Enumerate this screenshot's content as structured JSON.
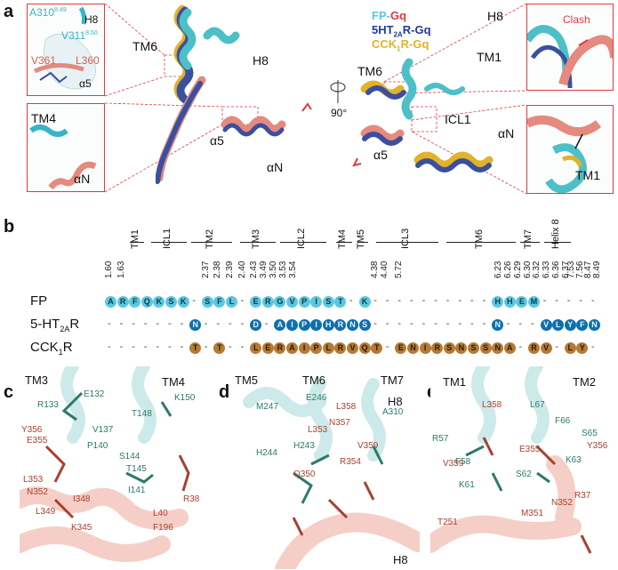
{
  "panel_a": {
    "letter": "a",
    "legend": [
      {
        "label": "FP-Gq",
        "parts": [
          {
            "t": "FP-",
            "c": "#5ac8e3"
          },
          {
            "t": "Gq",
            "c": "#e0393e"
          }
        ]
      },
      {
        "label": "5HT2AR-Gq",
        "parts": [
          {
            "t": "5HT",
            "c": "#1f3aa0"
          },
          {
            "t": "2A",
            "c": "#1f3aa0",
            "sub": true
          },
          {
            "t": "R-Gq",
            "c": "#1f3aa0"
          }
        ]
      },
      {
        "label": "CCK1R-Gq",
        "parts": [
          {
            "t": "CCK",
            "c": "#e2b22a"
          },
          {
            "t": "1",
            "c": "#e2b22a",
            "sub": true
          },
          {
            "t": "R-Gq",
            "c": "#e2b22a"
          }
        ]
      }
    ],
    "inset_top_left": {
      "a310": "A310",
      "a310_sup": "8.49",
      "h8": "H8",
      "v311": "V311",
      "v311_sup": "8.50",
      "v361": "V361",
      "l360": "L360",
      "alpha5": "α5"
    },
    "inset_bottom_left": {
      "tm4": "TM4",
      "alphaN": "αN"
    },
    "left_structure": {
      "tm6": "TM6",
      "h8": "H8",
      "alpha5": "α5",
      "alphaN": "αN"
    },
    "rotation": "90°",
    "right_structure": {
      "h8": "H8",
      "tm6": "TM6",
      "tm1": "TM1",
      "icl1": "ICL1",
      "alpha5": "α5",
      "alphaN": "αN"
    },
    "inset_top_right": {
      "clash": "Clash"
    },
    "inset_bottom_right": {
      "tm1": "TM1"
    }
  },
  "panel_b": {
    "letter": "b",
    "segments": [
      "TM1",
      "ICL1",
      "TM2",
      "TM3",
      "ICL2",
      "TM4",
      "TM5",
      "ICL3",
      "TM6",
      "TM7",
      "Helix 8"
    ],
    "bw_positions": [
      "1.60",
      "1.63",
      "2.37",
      "2.38",
      "2.39",
      "2.40",
      "2.43",
      "3.49",
      "3.50",
      "3.53",
      "3.54",
      "4.38",
      "4.40",
      "5.72",
      "6.23",
      "6.26",
      "6.29",
      "6.30",
      "6.32",
      "6.33",
      "6.36",
      "6.37",
      "7.53",
      "7.56",
      "8.47",
      "8.49"
    ],
    "rows": [
      {
        "label": "FP",
        "sub": "",
        "suffix": "",
        "residues": "A R F Q K S K - S F L - E R G V P I S T - K - - - - - - - - - - H H E M - - - - - - A"
      },
      {
        "label": "5-HT",
        "sub": "2A",
        "suffix": "R",
        "residues": "- - - - - - - N - - - - D - A I P I H R N S - - - - - - - - - - N - - - V L Y F N -"
      },
      {
        "label": "CCK",
        "sub": "1",
        "suffix": "R",
        "residues": "- - - - - - - T - T - - L E R A I P L R V Q T - E N I R S N S S N A - R V - L Y - N R"
      }
    ]
  },
  "panel_c": {
    "letter": "c",
    "helices": [
      "TM3",
      "TM4"
    ],
    "residues": [
      {
        "t": "E132",
        "k": "g"
      },
      {
        "t": "R133",
        "k": "g"
      },
      {
        "t": "T148",
        "k": "g"
      },
      {
        "t": "K150",
        "k": "g"
      },
      {
        "t": "Y356",
        "k": "r"
      },
      {
        "t": "V137",
        "k": "g"
      },
      {
        "t": "E355",
        "k": "r"
      },
      {
        "t": "P140",
        "k": "g"
      },
      {
        "t": "S144",
        "k": "g"
      },
      {
        "t": "T145",
        "k": "g"
      },
      {
        "t": "L353",
        "k": "r"
      },
      {
        "t": "N352",
        "k": "r"
      },
      {
        "t": "I348",
        "k": "r"
      },
      {
        "t": "I141",
        "k": "g"
      },
      {
        "t": "R38",
        "k": "r"
      },
      {
        "t": "L349",
        "k": "r"
      },
      {
        "t": "L40",
        "k": "r"
      },
      {
        "t": "K345",
        "k": "r"
      },
      {
        "t": "F196",
        "k": "r"
      }
    ]
  },
  "panel_d": {
    "letter": "d",
    "helices": [
      "TM5",
      "TM6",
      "TM7",
      "H8",
      "H8"
    ],
    "residues": [
      {
        "t": "E246",
        "k": "g"
      },
      {
        "t": "M247",
        "k": "g"
      },
      {
        "t": "L358",
        "k": "r"
      },
      {
        "t": "A310",
        "k": "g"
      },
      {
        "t": "N357",
        "k": "r"
      },
      {
        "t": "L353",
        "k": "r"
      },
      {
        "t": "H243",
        "k": "g"
      },
      {
        "t": "V359",
        "k": "r"
      },
      {
        "t": "H244",
        "k": "g"
      },
      {
        "t": "R354",
        "k": "r"
      },
      {
        "t": "Q350",
        "k": "r"
      }
    ]
  },
  "panel_e": {
    "letter": "e",
    "helices": [
      "TM1",
      "TM2"
    ],
    "residues": [
      {
        "t": "L358",
        "k": "r"
      },
      {
        "t": "L67",
        "k": "g"
      },
      {
        "t": "F66",
        "k": "g"
      },
      {
        "t": "R57",
        "k": "g"
      },
      {
        "t": "S65",
        "k": "g"
      },
      {
        "t": "Y356",
        "k": "r"
      },
      {
        "t": "E355",
        "k": "r"
      },
      {
        "t": "V359",
        "k": "r"
      },
      {
        "t": "F58",
        "k": "g"
      },
      {
        "t": "K63",
        "k": "g"
      },
      {
        "t": "S62",
        "k": "g"
      },
      {
        "t": "R37",
        "k": "r"
      },
      {
        "t": "K61",
        "k": "g"
      },
      {
        "t": "N352",
        "k": "r"
      },
      {
        "t": "T251",
        "k": "r"
      },
      {
        "t": "M351",
        "k": "r"
      }
    ]
  },
  "colors": {
    "fp": "#5cc7e0",
    "ht2a": "#0d6fb0",
    "cck1": "#b57a34",
    "gq": "#e0393e",
    "cyan_helix": "#6fcfcf",
    "salmon_helix": "#e48a7e"
  }
}
